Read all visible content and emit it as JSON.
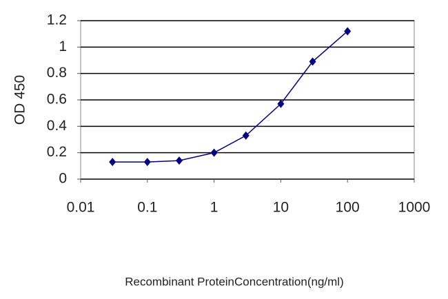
{
  "chart_data": {
    "type": "line",
    "x": [
      0.03,
      0.1,
      0.3,
      1,
      3,
      10,
      30,
      100
    ],
    "values": [
      0.13,
      0.13,
      0.14,
      0.2,
      0.33,
      0.57,
      0.89,
      1.12
    ],
    "color": "#000080",
    "xscale": "log",
    "xlim": [
      0.01,
      1000
    ],
    "xticks": [
      0.01,
      0.1,
      1,
      10,
      100,
      1000
    ],
    "ylim": [
      0,
      1.2
    ],
    "yticks": [
      0,
      0.2,
      0.4,
      0.6,
      0.8,
      1,
      1.2
    ],
    "grid": true,
    "xlabel": "Recombinant ProteinConcentration(ng/ml)",
    "ylabel": "OD 450"
  }
}
